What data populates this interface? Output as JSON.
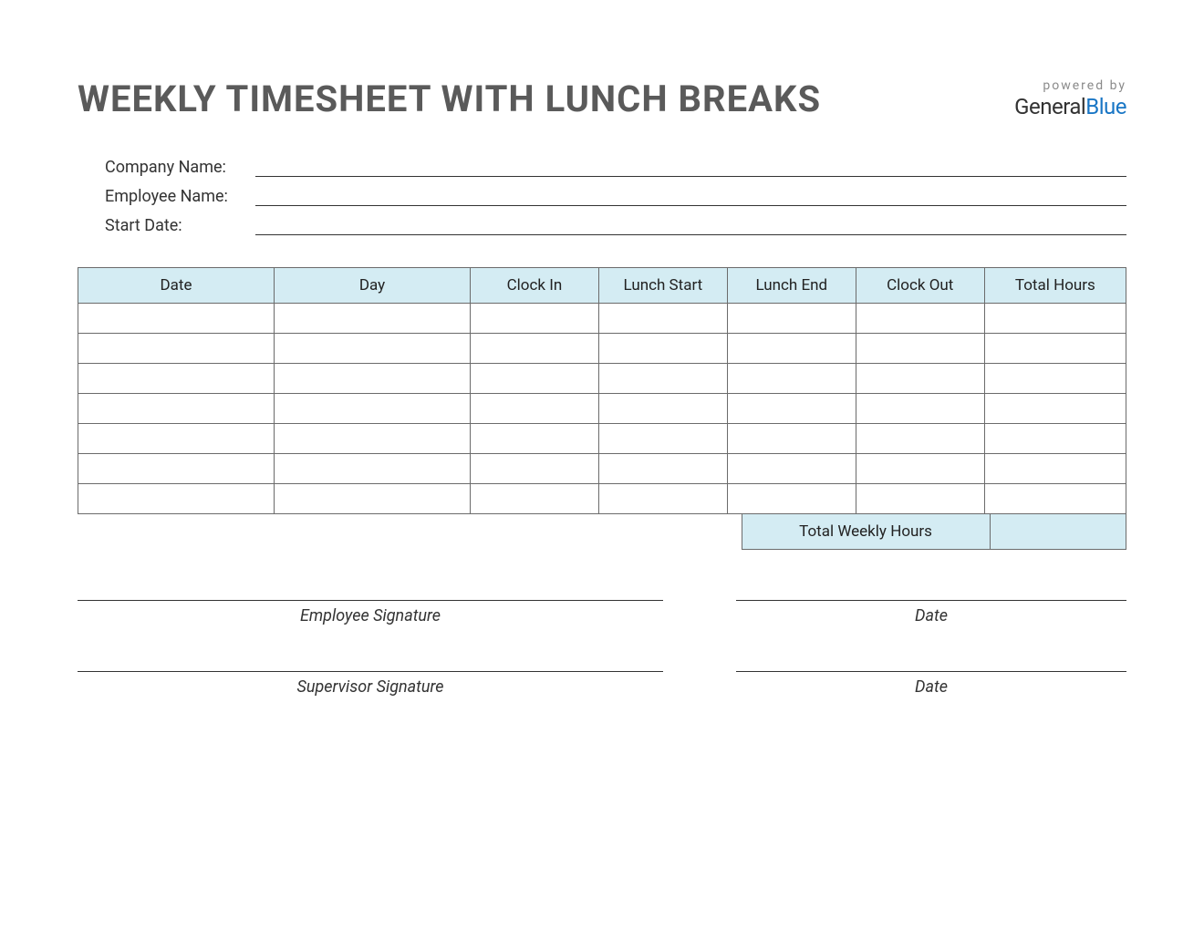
{
  "title": "WEEKLY TIMESHEET WITH LUNCH BREAKS",
  "logo": {
    "powered_by": "powered by",
    "part1": "General",
    "part2": "Blue"
  },
  "info_fields": {
    "company_label": "Company Name:",
    "company_value": "",
    "employee_label": "Employee Name:",
    "employee_value": "",
    "start_date_label": "Start Date:",
    "start_date_value": ""
  },
  "table": {
    "columns": [
      "Date",
      "Day",
      "Clock In",
      "Lunch Start",
      "Lunch End",
      "Clock Out",
      "Total Hours"
    ],
    "rows": [
      [
        "",
        "",
        "",
        "",
        "",
        "",
        ""
      ],
      [
        "",
        "",
        "",
        "",
        "",
        "",
        ""
      ],
      [
        "",
        "",
        "",
        "",
        "",
        "",
        ""
      ],
      [
        "",
        "",
        "",
        "",
        "",
        "",
        ""
      ],
      [
        "",
        "",
        "",
        "",
        "",
        "",
        ""
      ],
      [
        "",
        "",
        "",
        "",
        "",
        "",
        ""
      ],
      [
        "",
        "",
        "",
        "",
        "",
        "",
        ""
      ]
    ],
    "header_bg": "#d4ecf3",
    "border_color": "#6b6b6b",
    "summary_label": "Total Weekly Hours",
    "summary_value": ""
  },
  "signatures": {
    "employee_sig": "Employee Signature",
    "supervisor_sig": "Supervisor Signature",
    "date_label": "Date"
  },
  "colors": {
    "title_text": "#5a5a5a",
    "accent_blue": "#1976c5",
    "text": "#333333",
    "background": "#ffffff"
  }
}
